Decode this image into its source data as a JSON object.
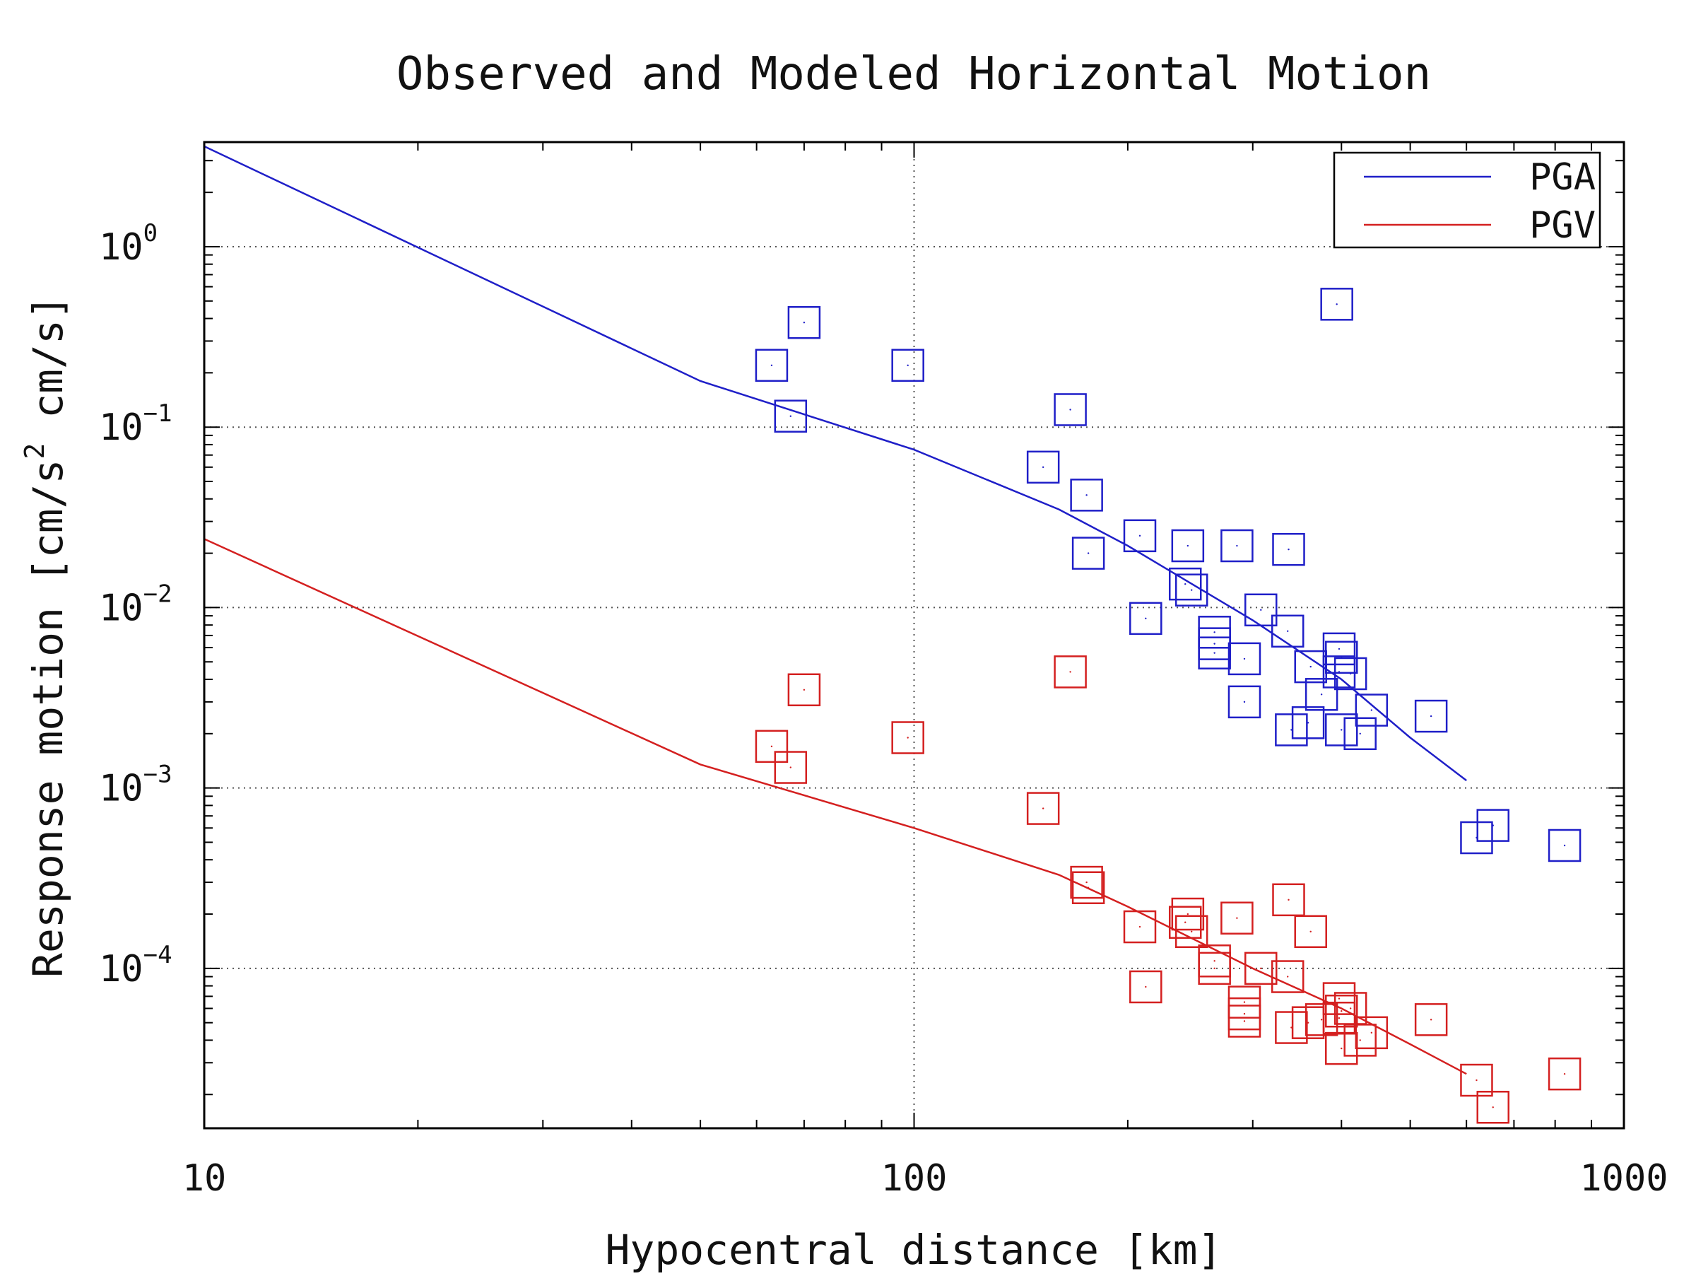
{
  "chart_data": {
    "type": "scatter",
    "title": "Observed and Modeled Horizontal Motion",
    "xlabel": "Hypocentral distance [km]",
    "ylabel": "Response motion  [cm/s",
    "ylabel_sup": "2",
    "ylabel_tail": "  cm/s]",
    "xscale": "log",
    "yscale": "log",
    "xlim": [
      10,
      1000
    ],
    "ylim": [
      1.3e-05,
      3.8
    ],
    "grid": true,
    "legend_position": "top-right",
    "x_ticks": [
      {
        "value": 10,
        "label": "10"
      },
      {
        "value": 100,
        "label": "100"
      },
      {
        "value": 1000,
        "label": "1000"
      }
    ],
    "y_ticks": [
      {
        "value": 1,
        "base": "10",
        "exp": "0"
      },
      {
        "value": 0.1,
        "base": "10",
        "exp": "−1"
      },
      {
        "value": 0.01,
        "base": "10",
        "exp": "−2"
      },
      {
        "value": 0.001,
        "base": "10",
        "exp": "−3"
      },
      {
        "value": 0.0001,
        "base": "10",
        "exp": "−4"
      }
    ],
    "series": [
      {
        "name": "PGA",
        "color": "#1f1fc8",
        "model_line": {
          "x": [
            10,
            50,
            100,
            160,
            200,
            300,
            400,
            500,
            600
          ],
          "y": [
            3.6,
            0.18,
            0.075,
            0.035,
            0.022,
            0.0085,
            0.004,
            0.0019,
            0.0011
          ]
        },
        "observed": [
          {
            "x": 63,
            "y": 0.22
          },
          {
            "x": 70,
            "y": 0.38
          },
          {
            "x": 67,
            "y": 0.115
          },
          {
            "x": 98,
            "y": 0.22
          },
          {
            "x": 152,
            "y": 0.06
          },
          {
            "x": 166,
            "y": 0.125
          },
          {
            "x": 175,
            "y": 0.042
          },
          {
            "x": 176,
            "y": 0.02
          },
          {
            "x": 208,
            "y": 0.025
          },
          {
            "x": 212,
            "y": 0.0087
          },
          {
            "x": 243,
            "y": 0.022
          },
          {
            "x": 241,
            "y": 0.0135
          },
          {
            "x": 246,
            "y": 0.0125
          },
          {
            "x": 265,
            "y": 0.0073
          },
          {
            "x": 265,
            "y": 0.0063
          },
          {
            "x": 265,
            "y": 0.0056
          },
          {
            "x": 285,
            "y": 0.022
          },
          {
            "x": 292,
            "y": 0.0052
          },
          {
            "x": 292,
            "y": 0.003
          },
          {
            "x": 308,
            "y": 0.0097
          },
          {
            "x": 337,
            "y": 0.021
          },
          {
            "x": 336,
            "y": 0.0074
          },
          {
            "x": 340,
            "y": 0.0021
          },
          {
            "x": 359,
            "y": 0.0023
          },
          {
            "x": 362,
            "y": 0.0047
          },
          {
            "x": 375,
            "y": 0.0033
          },
          {
            "x": 394,
            "y": 0.48
          },
          {
            "x": 397,
            "y": 0.0059
          },
          {
            "x": 400,
            "y": 0.0053
          },
          {
            "x": 397,
            "y": 0.0044
          },
          {
            "x": 400,
            "y": 0.0021
          },
          {
            "x": 412,
            "y": 0.0043
          },
          {
            "x": 425,
            "y": 0.002
          },
          {
            "x": 441,
            "y": 0.0027
          },
          {
            "x": 535,
            "y": 0.0025
          },
          {
            "x": 620,
            "y": 0.00053
          },
          {
            "x": 654,
            "y": 0.00062
          },
          {
            "x": 825,
            "y": 0.00048
          }
        ]
      },
      {
        "name": "PGV",
        "color": "#d42020",
        "model_line": {
          "x": [
            10,
            50,
            100,
            160,
            200,
            300,
            400,
            500,
            600
          ],
          "y": [
            0.024,
            0.00135,
            0.0006,
            0.00033,
            0.00022,
            0.0001,
            6e-05,
            3.8e-05,
            2.6e-05
          ]
        },
        "observed": [
          {
            "x": 63,
            "y": 0.0017
          },
          {
            "x": 70,
            "y": 0.0035
          },
          {
            "x": 67,
            "y": 0.0013
          },
          {
            "x": 98,
            "y": 0.0019
          },
          {
            "x": 152,
            "y": 0.00077
          },
          {
            "x": 166,
            "y": 0.0044
          },
          {
            "x": 175,
            "y": 0.0003
          },
          {
            "x": 176,
            "y": 0.00028
          },
          {
            "x": 208,
            "y": 0.00017
          },
          {
            "x": 212,
            "y": 7.9e-05
          },
          {
            "x": 243,
            "y": 0.0002
          },
          {
            "x": 241,
            "y": 0.00018
          },
          {
            "x": 246,
            "y": 0.00016
          },
          {
            "x": 265,
            "y": 0.00011
          },
          {
            "x": 265,
            "y": 0.0001
          },
          {
            "x": 285,
            "y": 0.00019
          },
          {
            "x": 292,
            "y": 6.5e-05
          },
          {
            "x": 292,
            "y": 5.6e-05
          },
          {
            "x": 292,
            "y": 5.1e-05
          },
          {
            "x": 308,
            "y": 0.0001
          },
          {
            "x": 337,
            "y": 0.00024
          },
          {
            "x": 336,
            "y": 9e-05
          },
          {
            "x": 340,
            "y": 4.7e-05
          },
          {
            "x": 359,
            "y": 5e-05
          },
          {
            "x": 362,
            "y": 0.00016
          },
          {
            "x": 375,
            "y": 5.2e-05
          },
          {
            "x": 397,
            "y": 6.8e-05
          },
          {
            "x": 400,
            "y": 5.8e-05
          },
          {
            "x": 397,
            "y": 5.3e-05
          },
          {
            "x": 400,
            "y": 3.6e-05
          },
          {
            "x": 412,
            "y": 6e-05
          },
          {
            "x": 425,
            "y": 4e-05
          },
          {
            "x": 441,
            "y": 4.4e-05
          },
          {
            "x": 535,
            "y": 5.2e-05
          },
          {
            "x": 620,
            "y": 2.4e-05
          },
          {
            "x": 654,
            "y": 1.7e-05
          },
          {
            "x": 825,
            "y": 2.6e-05
          }
        ]
      }
    ]
  }
}
